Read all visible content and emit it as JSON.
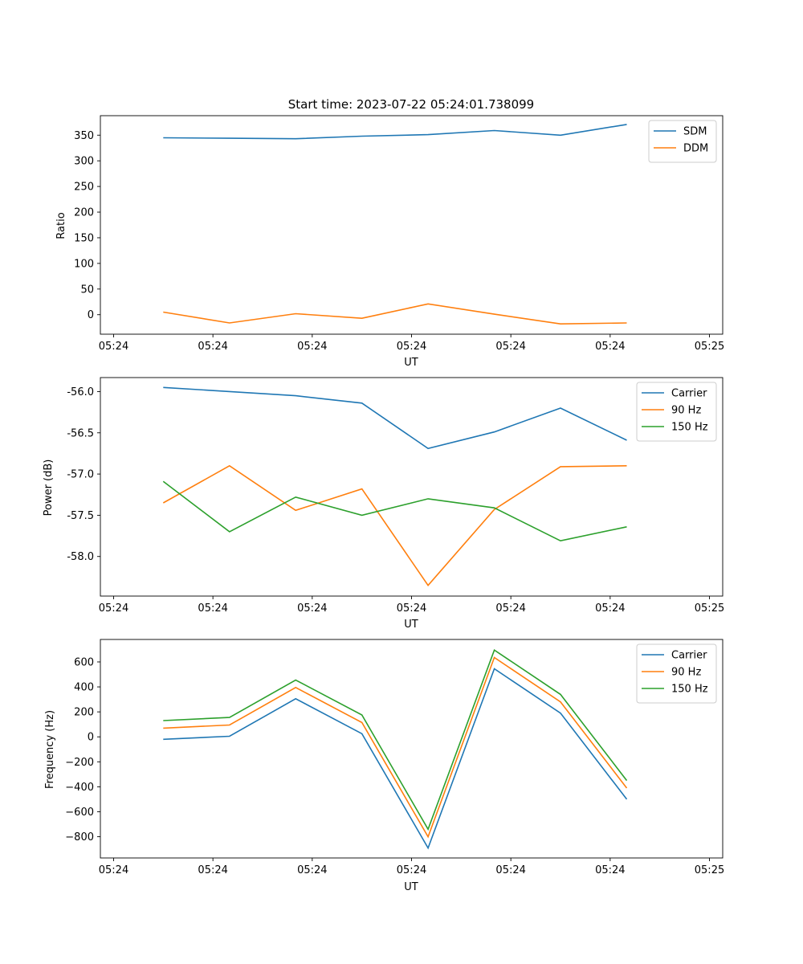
{
  "figure_title": "Start time: 2023-07-22 05:24:01.738099",
  "chart_data": [
    {
      "type": "line",
      "title": "Start time: 2023-07-22 05:24:01.738099",
      "xlabel": "UT",
      "ylabel": "Ratio",
      "ylim": [
        -38,
        388
      ],
      "yticks": [
        0,
        50,
        100,
        150,
        200,
        250,
        300,
        350
      ],
      "xlim": [
        -0.2,
        9.2
      ],
      "x": [
        0.75,
        1.75,
        2.75,
        3.75,
        4.75,
        5.75,
        6.75,
        7.75
      ],
      "xticks": [
        0,
        1.5,
        3,
        4.5,
        6,
        7.5,
        9
      ],
      "xtick_labels": [
        "05:24",
        "05:24",
        "05:24",
        "05:24",
        "05:24",
        "05:24",
        "05:25"
      ],
      "legend": "top-right",
      "series": [
        {
          "name": "SDM",
          "color": "#1f77b4",
          "values": [
            345,
            344,
            343,
            348,
            351,
            359,
            350,
            371
          ]
        },
        {
          "name": "DDM",
          "color": "#ff7f0e",
          "values": [
            5,
            -16,
            2,
            -7,
            21,
            1,
            -18,
            -16
          ]
        }
      ]
    },
    {
      "type": "line",
      "xlabel": "UT",
      "ylabel": "Power (dB)",
      "ylim": [
        -58.48,
        -55.83
      ],
      "yticks": [
        -58.0,
        -57.5,
        -57.0,
        -56.5,
        -56.0
      ],
      "xlim": [
        -0.2,
        9.2
      ],
      "x": [
        0.75,
        1.75,
        2.75,
        3.75,
        4.75,
        5.75,
        6.75,
        7.75
      ],
      "xticks": [
        0,
        1.5,
        3,
        4.5,
        6,
        7.5,
        9
      ],
      "xtick_labels": [
        "05:24",
        "05:24",
        "05:24",
        "05:24",
        "05:24",
        "05:24",
        "05:25"
      ],
      "legend": "top-right",
      "series": [
        {
          "name": "Carrier",
          "color": "#1f77b4",
          "values": [
            -55.95,
            -56.0,
            -56.05,
            -56.14,
            -56.69,
            -56.49,
            -56.2,
            -56.59
          ]
        },
        {
          "name": "90 Hz",
          "color": "#ff7f0e",
          "values": [
            -57.35,
            -56.9,
            -57.44,
            -57.18,
            -58.35,
            -57.43,
            -56.91,
            -56.9
          ]
        },
        {
          "name": "150 Hz",
          "color": "#2ca02c",
          "values": [
            -57.09,
            -57.7,
            -57.28,
            -57.5,
            -57.3,
            -57.41,
            -57.81,
            -57.64
          ]
        }
      ]
    },
    {
      "type": "line",
      "xlabel": "UT",
      "ylabel": "Frequency (Hz)",
      "ylim": [
        -970,
        780
      ],
      "yticks": [
        -800,
        -600,
        -400,
        -200,
        0,
        200,
        400,
        600
      ],
      "xlim": [
        -0.2,
        9.2
      ],
      "x": [
        0.75,
        1.75,
        2.75,
        3.75,
        4.75,
        5.75,
        6.75,
        7.75
      ],
      "xticks": [
        0,
        1.5,
        3,
        4.5,
        6,
        7.5,
        9
      ],
      "xtick_labels": [
        "05:24",
        "05:24",
        "05:24",
        "05:24",
        "05:24",
        "05:24",
        "05:25"
      ],
      "legend": "top-right",
      "series": [
        {
          "name": "Carrier",
          "color": "#1f77b4",
          "values": [
            -20,
            5,
            305,
            25,
            -890,
            545,
            190,
            -500
          ]
        },
        {
          "name": "90 Hz",
          "color": "#ff7f0e",
          "values": [
            70,
            95,
            395,
            115,
            -800,
            635,
            280,
            -410
          ]
        },
        {
          "name": "150 Hz",
          "color": "#2ca02c",
          "values": [
            130,
            155,
            455,
            175,
            -740,
            695,
            340,
            -350
          ]
        }
      ]
    }
  ]
}
